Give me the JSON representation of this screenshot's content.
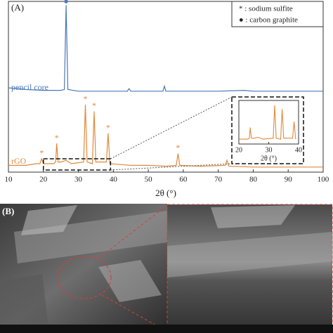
{
  "chart_data": {
    "type": "line",
    "panel_label": "(A)",
    "xlabel": "2θ (°)",
    "xlim": [
      10,
      100
    ],
    "xticks": [
      10,
      20,
      30,
      40,
      50,
      60,
      70,
      80,
      90,
      100
    ],
    "ylim": [
      0,
      100
    ],
    "legend": [
      "* : sodium sulfite",
      "● : carbon graphite"
    ],
    "series": [
      {
        "name": "pencil core",
        "color": "#4a78b8",
        "x": [
          10,
          15,
          20,
          25,
          26,
          26.5,
          27,
          30,
          35,
          40,
          44,
          44.5,
          45,
          50,
          54.2,
          54.6,
          55,
          60,
          70,
          77.5,
          80,
          90,
          100
        ],
        "values": [
          50,
          49,
          48.5,
          48.5,
          49,
          99,
          49,
          48,
          48,
          48,
          48,
          49.5,
          48,
          48,
          48,
          51,
          48,
          48,
          48,
          48.5,
          48,
          48,
          48
        ]
      },
      {
        "name": "rGO",
        "color": "#e08a3c",
        "x": [
          10,
          15,
          18,
          19,
          19.5,
          20,
          23,
          23.5,
          23.8,
          24.2,
          25,
          26.5,
          28,
          31.5,
          32,
          32.5,
          34,
          34.5,
          35,
          38,
          38.5,
          39,
          42,
          45,
          50,
          55,
          58,
          58.5,
          59,
          65,
          72,
          72.5,
          73,
          80,
          90,
          100
        ],
        "values": [
          4,
          4,
          5,
          5,
          8,
          5,
          5,
          6,
          17,
          6,
          6,
          7,
          5,
          6,
          40,
          6,
          5,
          36,
          6,
          6,
          23,
          5,
          4.5,
          4,
          4,
          3.5,
          4,
          11,
          4,
          3.5,
          4,
          7,
          3.5,
          3,
          3,
          3
        ]
      }
    ],
    "annotations": [
      {
        "text": "●",
        "x": 26.5,
        "y": 101
      },
      {
        "text": "*",
        "x": 19.5,
        "y": 11
      },
      {
        "text": "*",
        "x": 23.8,
        "y": 20
      },
      {
        "text": "*",
        "x": 32,
        "y": 43
      },
      {
        "text": "*",
        "x": 34.5,
        "y": 39
      },
      {
        "text": "*",
        "x": 38.5,
        "y": 26
      },
      {
        "text": "*",
        "x": 58.5,
        "y": 14
      }
    ],
    "inset": {
      "xlim": [
        20,
        40
      ],
      "xticks": [
        20,
        30,
        40
      ],
      "ylim": [
        0,
        45
      ],
      "xlabel": "2θ (°)"
    },
    "panel_b_label": "(B)"
  }
}
